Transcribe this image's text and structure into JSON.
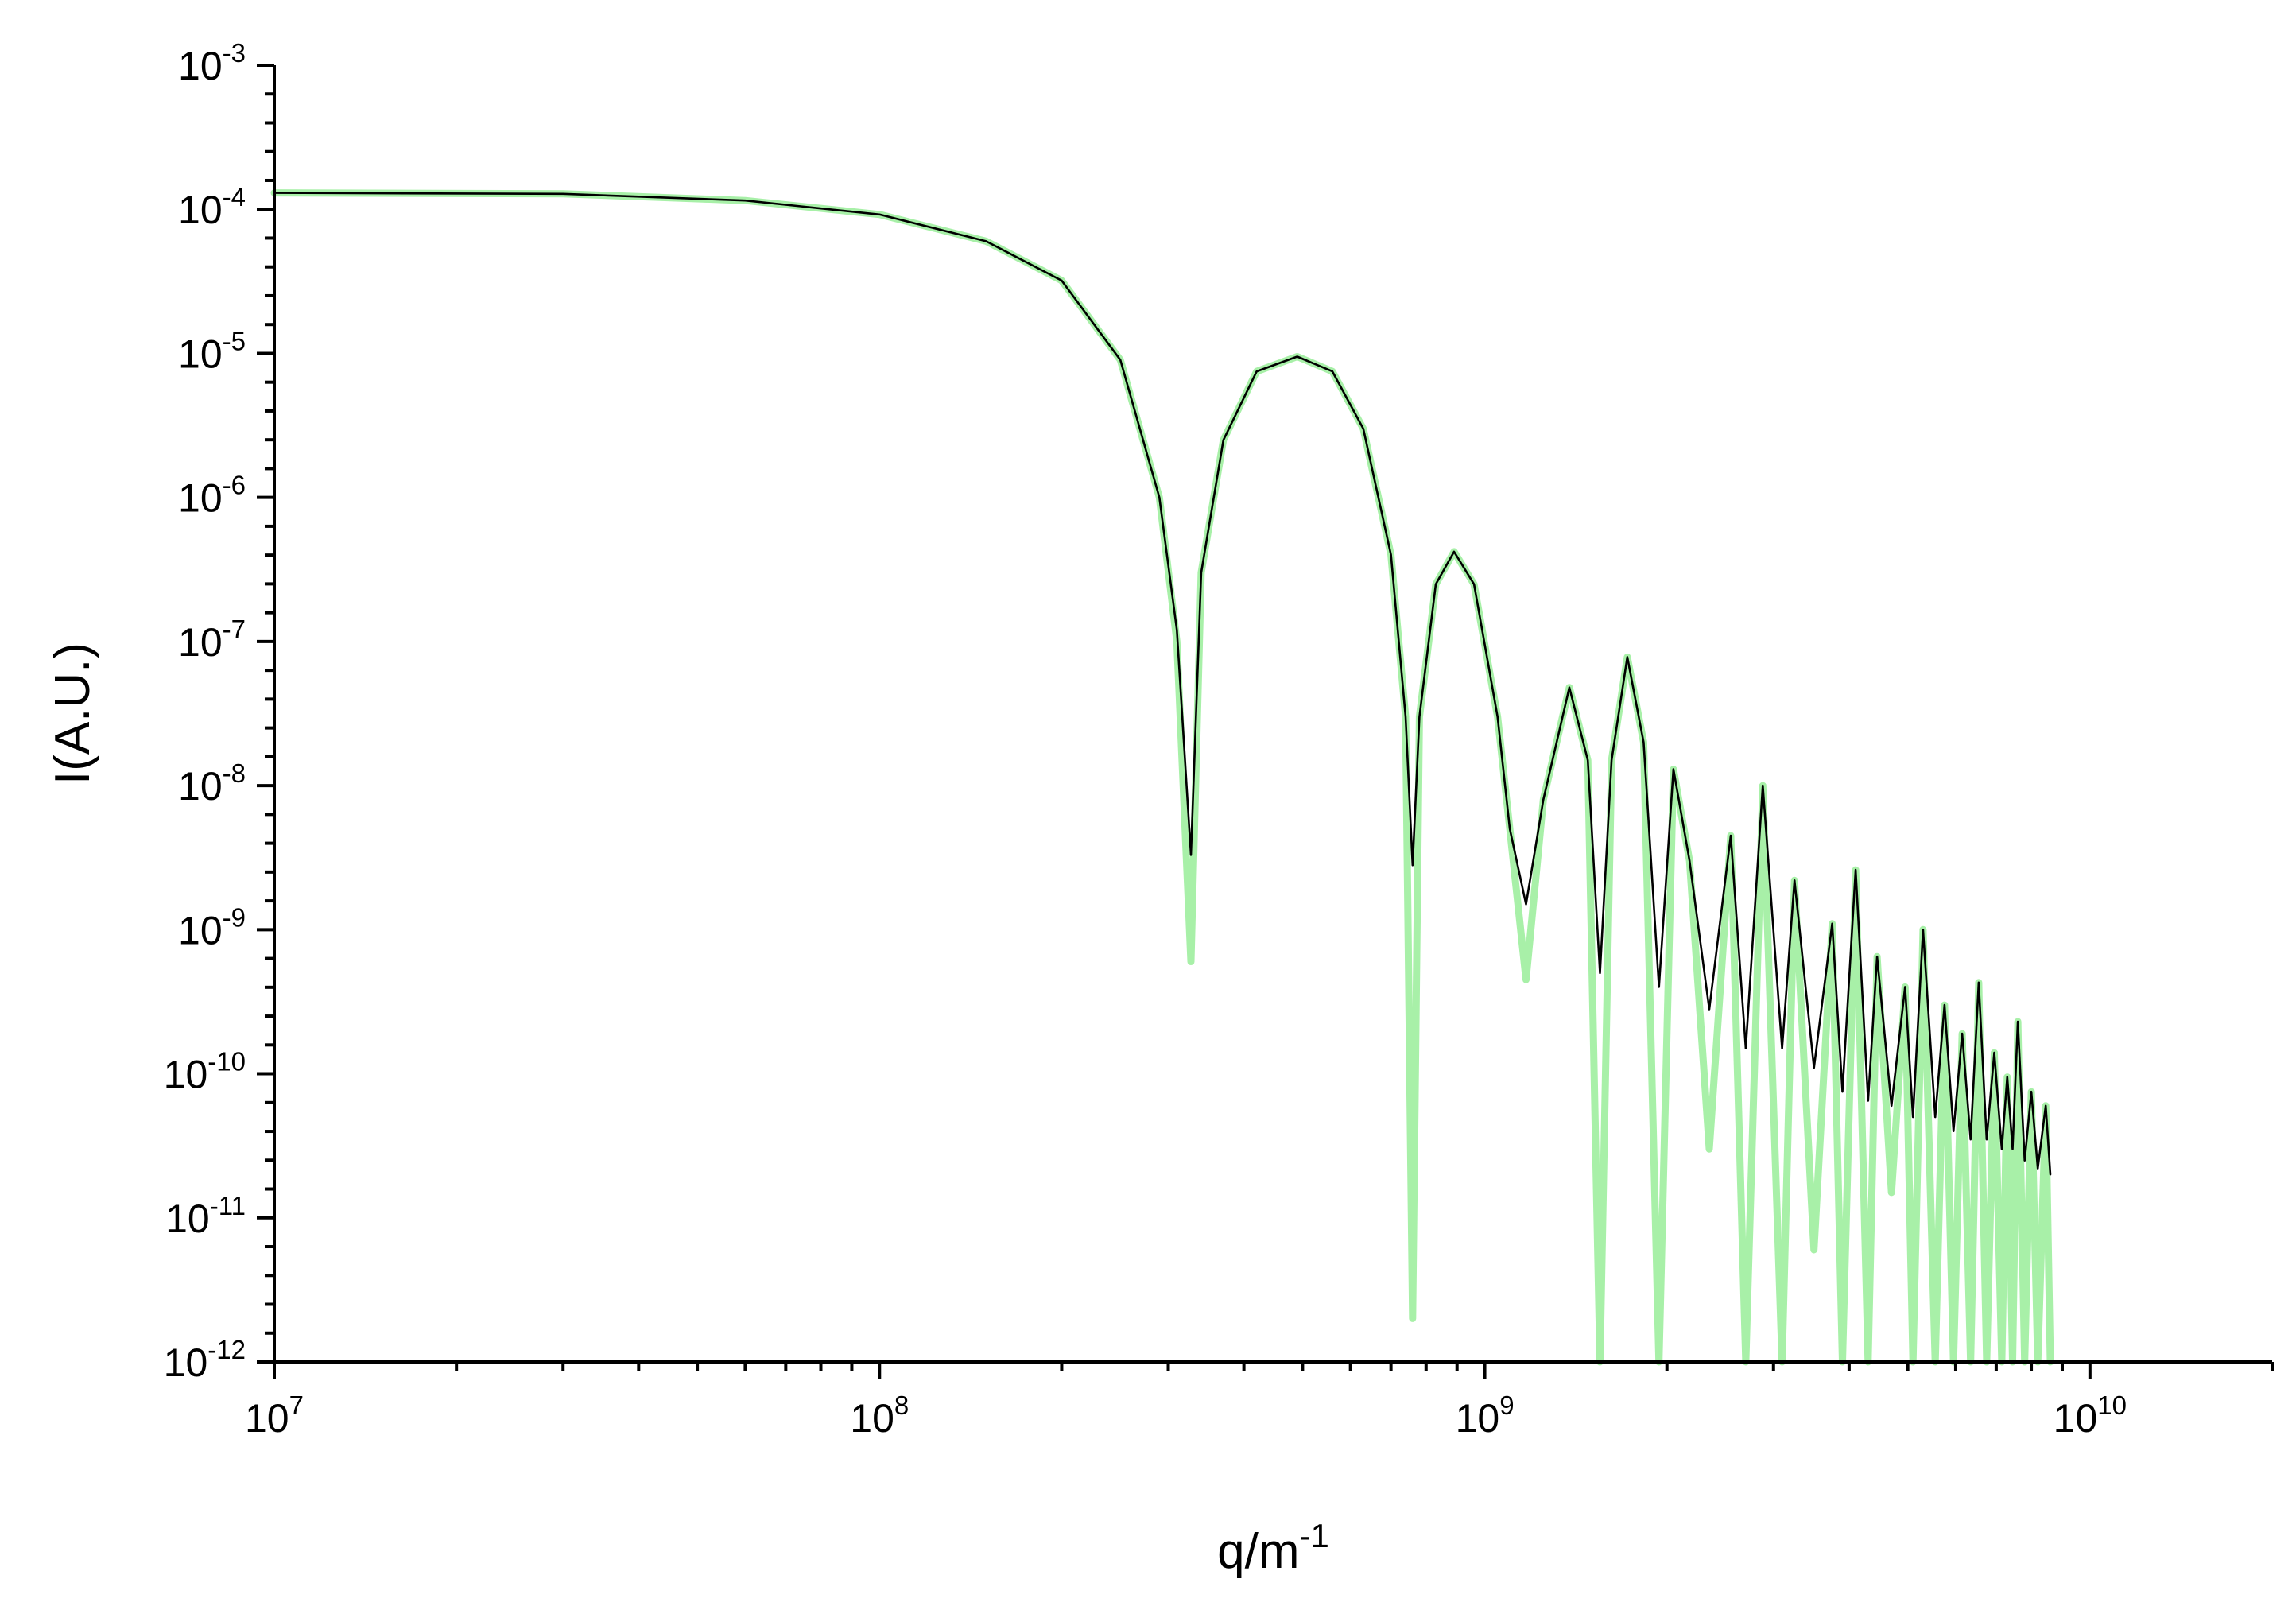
{
  "chart_data": {
    "type": "line",
    "title": "",
    "xlabel": {
      "base": "q/m",
      "exponent": "-1"
    },
    "ylabel": "I(A.U.)",
    "x_scale": "log",
    "y_scale": "log",
    "xlim": [
      10000000.0,
      20000000000.0
    ],
    "ylim": [
      1e-12,
      0.001
    ],
    "grid": false,
    "legend": "none",
    "x_ticks": [
      {
        "value": 10000000.0,
        "base": "10",
        "exponent": "7"
      },
      {
        "value": 100000000.0,
        "base": "10",
        "exponent": "8"
      },
      {
        "value": 1000000000.0,
        "base": "10",
        "exponent": "9"
      },
      {
        "value": 10000000000.0,
        "base": "10",
        "exponent": "10"
      }
    ],
    "y_ticks": [
      {
        "value": 0.001,
        "base": "10",
        "exponent": "-3"
      },
      {
        "value": 0.0001,
        "base": "10",
        "exponent": "-4"
      },
      {
        "value": 1e-05,
        "base": "10",
        "exponent": "-5"
      },
      {
        "value": 1e-06,
        "base": "10",
        "exponent": "-6"
      },
      {
        "value": 1e-07,
        "base": "10",
        "exponent": "-7"
      },
      {
        "value": 1e-08,
        "base": "10",
        "exponent": "-8"
      },
      {
        "value": 1e-09,
        "base": "10",
        "exponent": "-9"
      },
      {
        "value": 1e-10,
        "base": "10",
        "exponent": "-10"
      },
      {
        "value": 1e-11,
        "base": "10",
        "exponent": "-11"
      },
      {
        "value": 1e-12,
        "base": "10",
        "exponent": "-12"
      }
    ],
    "series": [
      {
        "color": "#a8f0a8",
        "line_width": "thick",
        "description": "form factor (sharp minima)",
        "points": [
          [
            10000000.0,
            0.00013
          ],
          [
            30000000.0,
            0.000128
          ],
          [
            60000000.0,
            0.000115
          ],
          [
            100000000.0,
            9.2e-05
          ],
          [
            150000000.0,
            6e-05
          ],
          [
            200000000.0,
            3.2e-05
          ],
          [
            250000000.0,
            9e-06
          ],
          [
            290000000.0,
            1e-06
          ],
          [
            310000000.0,
            1e-07
          ],
          [
            327000000.0,
            6e-10
          ],
          [
            340000000.0,
            3e-07
          ],
          [
            370000000.0,
            2.5e-06
          ],
          [
            420000000.0,
            7.5e-06
          ],
          [
            490000000.0,
            9.5e-06
          ],
          [
            560000000.0,
            7.5e-06
          ],
          [
            630000000.0,
            3e-06
          ],
          [
            700000000.0,
            4e-07
          ],
          [
            740000000.0,
            3e-08
          ],
          [
            760000000.0,
            2e-12
          ],
          [
            780000000.0,
            3e-08
          ],
          [
            830000000.0,
            2.5e-07
          ],
          [
            890000000.0,
            4.2e-07
          ],
          [
            960000000.0,
            2.5e-07
          ],
          [
            1050000000.0,
            3e-08
          ],
          [
            1100000000.0,
            5e-09
          ],
          [
            1170000000.0,
            4.5e-10
          ],
          [
            1250000000.0,
            8e-09
          ],
          [
            1380000000.0,
            4.8e-08
          ],
          [
            1480000000.0,
            1.5e-08
          ],
          [
            1550000000.0,
            1e-12
          ],
          [
            1620000000.0,
            1.5e-08
          ],
          [
            1720000000.0,
            7.8e-08
          ],
          [
            1830000000.0,
            2e-08
          ],
          [
            1940000000.0,
            1e-12
          ],
          [
            2050000000.0,
            1.3e-08
          ],
          [
            2180000000.0,
            3e-09
          ],
          [
            2350000000.0,
            3e-11
          ],
          [
            2550000000.0,
            4.5e-09
          ],
          [
            2700000000.0,
            1e-12
          ],
          [
            2880000000.0,
            1e-08
          ],
          [
            3100000000.0,
            1e-12
          ],
          [
            3250000000.0,
            2.2e-09
          ],
          [
            3500000000.0,
            6e-12
          ],
          [
            3750000000.0,
            1.1e-09
          ],
          [
            3900000000.0,
            1e-12
          ],
          [
            4100000000.0,
            2.6e-09
          ],
          [
            4300000000.0,
            1e-12
          ],
          [
            4450000000.0,
            6.5e-10
          ],
          [
            4700000000.0,
            1.5e-11
          ],
          [
            4950000000.0,
            4e-10
          ],
          [
            5100000000.0,
            1e-12
          ],
          [
            5300000000.0,
            1e-09
          ],
          [
            5550000000.0,
            1e-12
          ],
          [
            5750000000.0,
            3e-10
          ],
          [
            5950000000.0,
            1e-12
          ],
          [
            6150000000.0,
            1.9e-10
          ],
          [
            6350000000.0,
            1e-12
          ],
          [
            6550000000.0,
            4.3e-10
          ],
          [
            6750000000.0,
            1e-12
          ],
          [
            6950000000.0,
            1.4e-10
          ],
          [
            7150000000.0,
            1e-12
          ],
          [
            7300000000.0,
            9.5e-11
          ],
          [
            7450000000.0,
            1e-12
          ],
          [
            7600000000.0,
            2.3e-10
          ],
          [
            7800000000.0,
            1e-12
          ],
          [
            8000000000.0,
            7.5e-11
          ],
          [
            8200000000.0,
            1e-12
          ],
          [
            8450000000.0,
            6e-11
          ],
          [
            8600000000.0,
            1e-12
          ]
        ]
      },
      {
        "color": "#000000",
        "line_width": "thin",
        "description": "smeared curve (shallower minima)",
        "points": [
          [
            10000000.0,
            0.00013
          ],
          [
            30000000.0,
            0.000128
          ],
          [
            60000000.0,
            0.000115
          ],
          [
            100000000.0,
            9.2e-05
          ],
          [
            150000000.0,
            6e-05
          ],
          [
            200000000.0,
            3.2e-05
          ],
          [
            250000000.0,
            9e-06
          ],
          [
            290000000.0,
            1e-06
          ],
          [
            310000000.0,
            1.2e-07
          ],
          [
            327000000.0,
            3.3e-09
          ],
          [
            340000000.0,
            3e-07
          ],
          [
            370000000.0,
            2.5e-06
          ],
          [
            420000000.0,
            7.5e-06
          ],
          [
            490000000.0,
            9.5e-06
          ],
          [
            560000000.0,
            7.5e-06
          ],
          [
            630000000.0,
            3e-06
          ],
          [
            700000000.0,
            4e-07
          ],
          [
            740000000.0,
            3e-08
          ],
          [
            760000000.0,
            2.8e-09
          ],
          [
            780000000.0,
            3e-08
          ],
          [
            830000000.0,
            2.5e-07
          ],
          [
            890000000.0,
            4.2e-07
          ],
          [
            960000000.0,
            2.5e-07
          ],
          [
            1050000000.0,
            3e-08
          ],
          [
            1100000000.0,
            5e-09
          ],
          [
            1170000000.0,
            1.5e-09
          ],
          [
            1250000000.0,
            8e-09
          ],
          [
            1380000000.0,
            4.8e-08
          ],
          [
            1480000000.0,
            1.5e-08
          ],
          [
            1550000000.0,
            5e-10
          ],
          [
            1620000000.0,
            1.5e-08
          ],
          [
            1720000000.0,
            7.8e-08
          ],
          [
            1830000000.0,
            2e-08
          ],
          [
            1940000000.0,
            4e-10
          ],
          [
            2050000000.0,
            1.3e-08
          ],
          [
            2180000000.0,
            3e-09
          ],
          [
            2350000000.0,
            2.8e-10
          ],
          [
            2550000000.0,
            4.5e-09
          ],
          [
            2700000000.0,
            1.5e-10
          ],
          [
            2880000000.0,
            1e-08
          ],
          [
            3100000000.0,
            1.5e-10
          ],
          [
            3250000000.0,
            2.2e-09
          ],
          [
            3500000000.0,
            1.1e-10
          ],
          [
            3750000000.0,
            1.1e-09
          ],
          [
            3900000000.0,
            7.5e-11
          ],
          [
            4100000000.0,
            2.6e-09
          ],
          [
            4300000000.0,
            6.5e-11
          ],
          [
            4450000000.0,
            6.5e-10
          ],
          [
            4700000000.0,
            6e-11
          ],
          [
            4950000000.0,
            4e-10
          ],
          [
            5100000000.0,
            5e-11
          ],
          [
            5300000000.0,
            1e-09
          ],
          [
            5550000000.0,
            5e-11
          ],
          [
            5750000000.0,
            3e-10
          ],
          [
            5950000000.0,
            4e-11
          ],
          [
            6150000000.0,
            1.9e-10
          ],
          [
            6350000000.0,
            3.5e-11
          ],
          [
            6550000000.0,
            4.3e-10
          ],
          [
            6750000000.0,
            3.5e-11
          ],
          [
            6950000000.0,
            1.4e-10
          ],
          [
            7150000000.0,
            3e-11
          ],
          [
            7300000000.0,
            9.5e-11
          ],
          [
            7450000000.0,
            3e-11
          ],
          [
            7600000000.0,
            2.3e-10
          ],
          [
            7800000000.0,
            2.5e-11
          ],
          [
            8000000000.0,
            7.5e-11
          ],
          [
            8200000000.0,
            2.2e-11
          ],
          [
            8450000000.0,
            6e-11
          ],
          [
            8600000000.0,
            2e-11
          ]
        ]
      }
    ]
  }
}
